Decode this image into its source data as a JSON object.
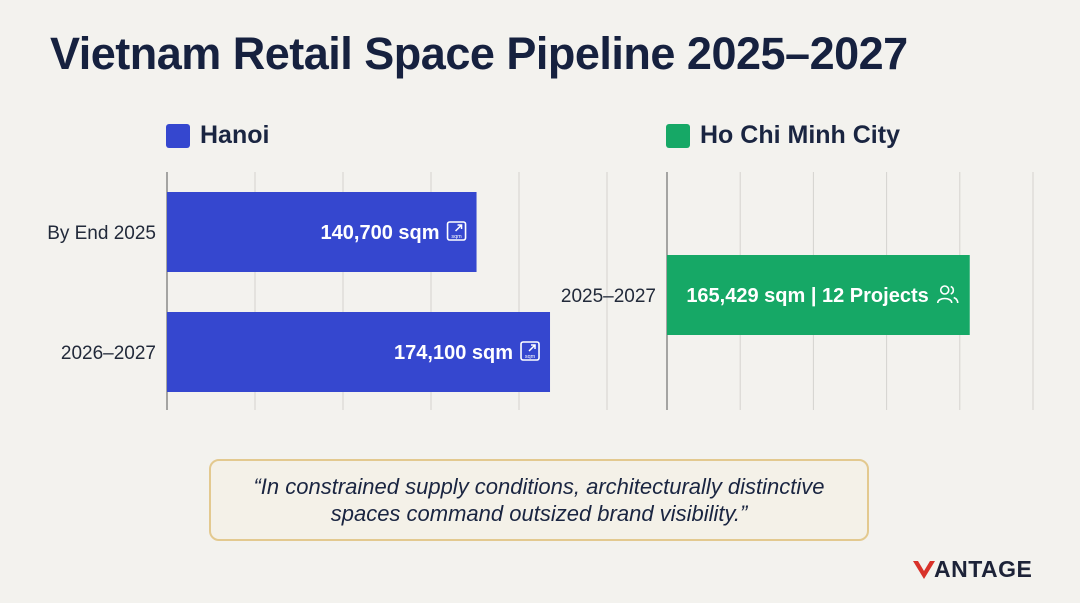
{
  "title": "Vietnam Retail Space Pipeline 2025–2027",
  "colors": {
    "hanoi": "#3547cf",
    "hcmc": "#16a866",
    "grid": "#d4d3cf",
    "axis": "#7a7a7a"
  },
  "chart_data": [
    {
      "type": "bar",
      "orientation": "horizontal",
      "legend": "Hanoi",
      "grid": true,
      "categories": [
        "By End 2025",
        "2026–2027"
      ],
      "values": [
        140700,
        174100
      ],
      "value_labels": [
        "140,700 sqm",
        "174,100 sqm"
      ],
      "label_icon": "sqm-icon",
      "xlim": [
        0,
        200000
      ]
    },
    {
      "type": "bar",
      "orientation": "horizontal",
      "legend": "Ho Chi Minh City",
      "grid": true,
      "categories": [
        "2025–2027"
      ],
      "values": [
        165429
      ],
      "value_labels": [
        "165,429 sqm | 12 Projects"
      ],
      "label_icon": "people-icon",
      "xlim": [
        0,
        200000
      ]
    }
  ],
  "quote": "“In constrained supply conditions, architecturally distinctive spaces command outsized brand visibility.”",
  "logo": {
    "text": "ANTAGE",
    "icon": "v-logo-icon"
  }
}
